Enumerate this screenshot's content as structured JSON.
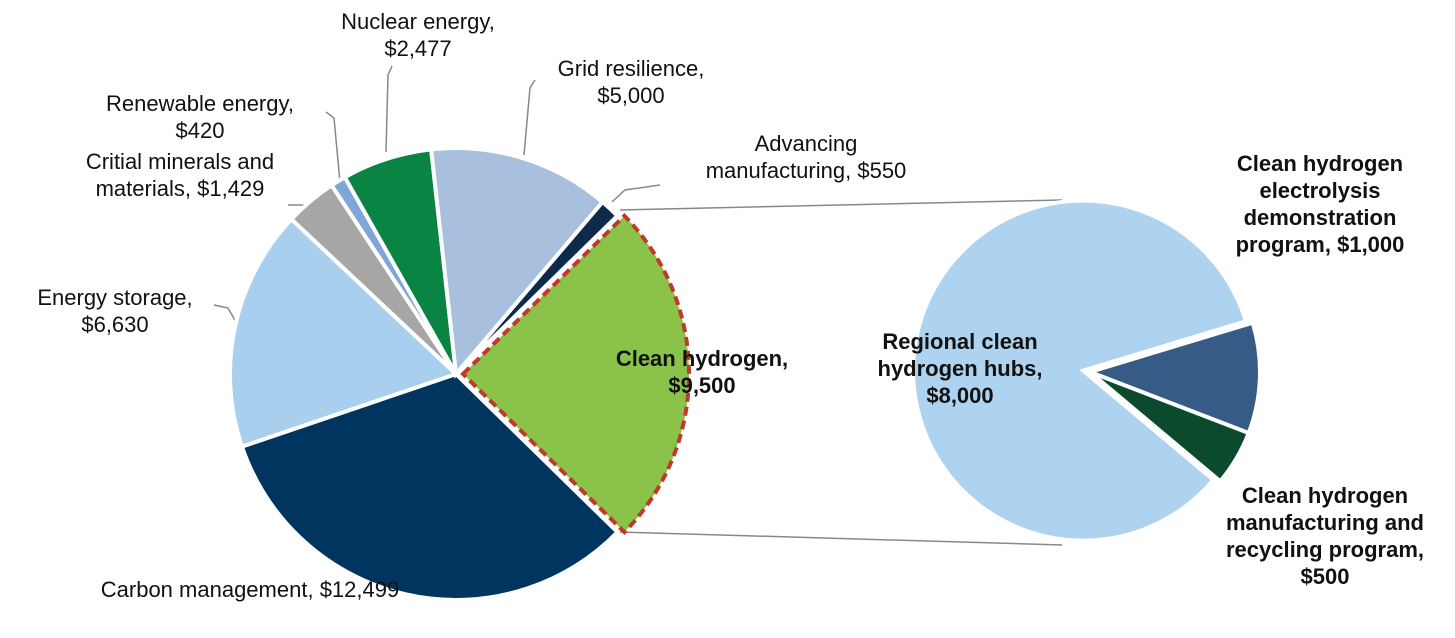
{
  "chart_data": [
    {
      "type": "pie",
      "categories": [
        "Carbon management,",
        "Energy storage,",
        "Critial minerals and materials,",
        "Renewable energy,",
        "Nuclear energy,",
        "Grid resilience,",
        "Advancing manufacturing,",
        "Clean hydrogen,"
      ],
      "values": [
        12499,
        6630,
        1429,
        420,
        2477,
        5000,
        550,
        9500
      ],
      "value_labels": [
        "$12,499",
        "$6,630",
        "$1,429",
        "$420",
        "$2,477",
        "$5,000",
        "$550",
        "$9,500"
      ],
      "colors": [
        "#003560",
        "#a9cfee",
        "#a6a6a6",
        "#7ea6d8",
        "#0a8443",
        "#a8c0dd",
        "#0d2a4a",
        "#8bc34a"
      ]
    },
    {
      "type": "pie",
      "categories": [
        "Regional clean hydrogen hubs,",
        "Clean hydrogen electrolysis demonstration program,",
        "Clean hydrogen manufacturing and recycling program,"
      ],
      "values": [
        8000,
        1000,
        500
      ],
      "value_labels": [
        "$8,000",
        "$1,000",
        "$500"
      ],
      "colors": [
        "#aed3f1",
        "#365b86",
        "#0b4a2c"
      ]
    }
  ]
}
